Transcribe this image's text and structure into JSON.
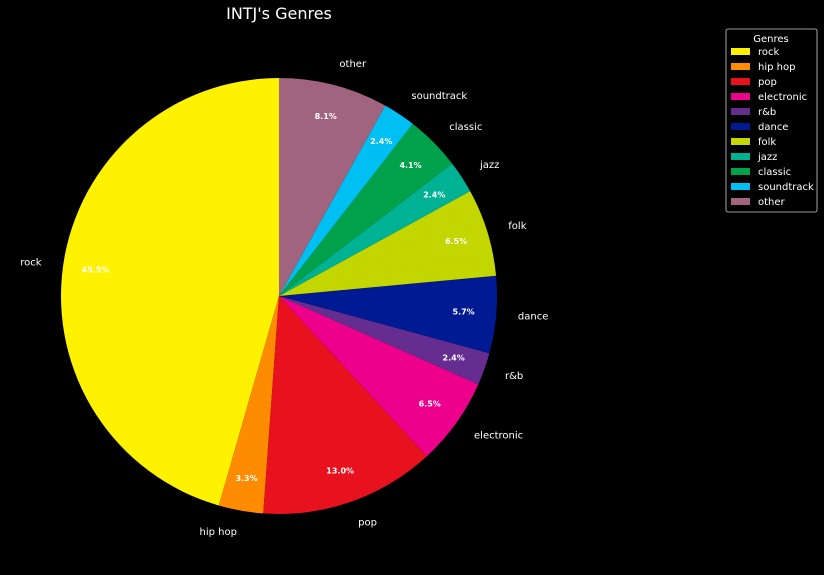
{
  "chart_data": {
    "type": "pie",
    "title": "INTJ's Genres",
    "categories": [
      "rock",
      "hip hop",
      "pop",
      "electronic",
      "r&b",
      "dance",
      "folk",
      "jazz",
      "classic",
      "soundtrack",
      "other"
    ],
    "values": [
      45.5,
      3.3,
      13.0,
      6.5,
      2.4,
      5.7,
      6.5,
      2.4,
      4.1,
      2.4,
      8.1
    ],
    "pct_labels": [
      "45.5%",
      "3.3%",
      "13.0%",
      "6.5%",
      "2.4%",
      "5.7%",
      "6.5%",
      "2.4%",
      "4.1%",
      "2.4%",
      "8.1%"
    ],
    "colors": [
      "#fff200",
      "#ff8c00",
      "#e8121f",
      "#ec008c",
      "#662d91",
      "#001a94",
      "#c4d600",
      "#00b294",
      "#00a14b",
      "#00bff3",
      "#a0647e"
    ],
    "start_angle_deg": 90,
    "direction": "counterclockwise",
    "legend": {
      "title": "Genres",
      "position": "top-right"
    },
    "background": "#000000"
  }
}
